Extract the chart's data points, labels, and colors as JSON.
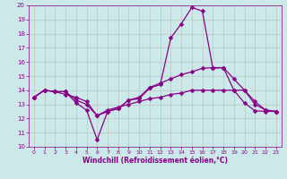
{
  "line_a_x": [
    0,
    1,
    2,
    3,
    4,
    5,
    6,
    7,
    8,
    9,
    10,
    11,
    12,
    13,
    14,
    15,
    16,
    17,
    18,
    19,
    20,
    21,
    22,
    23
  ],
  "line_a_y": [
    13.5,
    14.0,
    13.9,
    13.9,
    13.1,
    12.6,
    10.5,
    12.5,
    12.7,
    13.3,
    13.4,
    14.15,
    14.4,
    17.7,
    18.7,
    19.85,
    19.6,
    15.55,
    15.6,
    14.0,
    13.1,
    12.55,
    12.5,
    12.5
  ],
  "line_b_x": [
    0,
    1,
    2,
    3,
    4,
    5,
    6,
    7,
    8,
    9,
    10,
    11,
    12,
    13,
    14,
    15,
    16,
    17,
    18,
    19,
    20,
    21,
    22,
    23
  ],
  "line_b_y": [
    13.5,
    14.0,
    13.9,
    13.9,
    13.3,
    13.0,
    12.2,
    12.5,
    12.7,
    13.3,
    13.5,
    14.2,
    14.5,
    14.8,
    15.1,
    15.3,
    15.55,
    15.6,
    15.6,
    14.8,
    14.0,
    13.2,
    12.6,
    12.5
  ],
  "line_c_x": [
    0,
    1,
    2,
    3,
    4,
    5,
    6,
    7,
    8,
    9,
    10,
    11,
    12,
    13,
    14,
    15,
    16,
    17,
    18,
    19,
    20,
    21,
    22,
    23
  ],
  "line_c_y": [
    13.5,
    14.0,
    13.9,
    13.7,
    13.5,
    13.2,
    12.2,
    12.6,
    12.8,
    13.0,
    13.2,
    13.4,
    13.5,
    13.7,
    13.8,
    14.0,
    14.0,
    14.0,
    14.0,
    14.0,
    14.0,
    13.0,
    12.6,
    12.5
  ],
  "xlabel": "Windchill (Refroidissement éolien,°C)",
  "ylim": [
    10,
    20
  ],
  "xlim": [
    -0.5,
    23.5
  ],
  "yticks": [
    10,
    11,
    12,
    13,
    14,
    15,
    16,
    17,
    18,
    19,
    20
  ],
  "xticks": [
    0,
    1,
    2,
    3,
    4,
    5,
    6,
    7,
    8,
    9,
    10,
    11,
    12,
    13,
    14,
    15,
    16,
    17,
    18,
    19,
    20,
    21,
    22,
    23
  ],
  "bg_color": "#cce9e9",
  "line_color": "#880088",
  "grid_color": "#bbbbbb",
  "text_color": "#880088"
}
